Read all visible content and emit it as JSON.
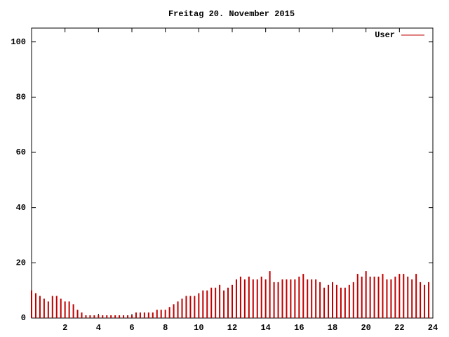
{
  "chart_data": {
    "type": "impulse",
    "title": "Freitag 20. November 2015",
    "x": [
      0,
      0.25,
      0.5,
      0.75,
      1,
      1.25,
      1.5,
      1.75,
      2,
      2.25,
      2.5,
      2.75,
      3,
      3.25,
      3.5,
      3.75,
      4,
      4.25,
      4.5,
      4.75,
      5,
      5.25,
      5.5,
      5.75,
      6,
      6.25,
      6.5,
      6.75,
      7,
      7.25,
      7.5,
      7.75,
      8,
      8.25,
      8.5,
      8.75,
      9,
      9.25,
      9.5,
      9.75,
      10,
      10.25,
      10.5,
      10.75,
      11,
      11.25,
      11.5,
      11.75,
      12,
      12.25,
      12.5,
      12.75,
      13,
      13.25,
      13.5,
      13.75,
      14,
      14.25,
      14.5,
      14.75,
      15,
      15.25,
      15.5,
      15.75,
      16,
      16.25,
      16.5,
      16.75,
      17,
      17.25,
      17.5,
      17.75,
      18,
      18.25,
      18.5,
      18.75,
      19,
      19.25,
      19.5,
      19.75,
      20,
      20.25,
      20.5,
      20.75,
      21,
      21.25,
      21.5,
      21.75,
      22,
      22.25,
      22.5,
      22.75,
      23,
      23.25,
      23.5,
      23.75
    ],
    "series": [
      {
        "name": "User",
        "color": "#c00000",
        "values": [
          10,
          9,
          8,
          7,
          6,
          8,
          8,
          7,
          6,
          6,
          5,
          3,
          2,
          1,
          1,
          1,
          1,
          1,
          1,
          1,
          1,
          1,
          1,
          1,
          1,
          2,
          2,
          2,
          2,
          2,
          3,
          3,
          3,
          4,
          5,
          6,
          7,
          8,
          8,
          8,
          9,
          10,
          10,
          11,
          11,
          12,
          10,
          11,
          12,
          14,
          15,
          14,
          15,
          14,
          14,
          15,
          14,
          17,
          13,
          13,
          14,
          14,
          14,
          14,
          15,
          16,
          14,
          14,
          14,
          13,
          11,
          12,
          13,
          12,
          11,
          11,
          12,
          13,
          16,
          15,
          17,
          15,
          15,
          15,
          16,
          14,
          14,
          15,
          16,
          16,
          15,
          14,
          16,
          13,
          12,
          13
        ]
      }
    ],
    "xlim": [
      0,
      24
    ],
    "xticks": [
      2,
      4,
      6,
      8,
      10,
      12,
      14,
      16,
      18,
      20,
      22,
      24
    ],
    "ylim": [
      0,
      105
    ],
    "yticks": [
      0,
      20,
      40,
      60,
      80,
      100
    ],
    "legend": "top-right"
  }
}
